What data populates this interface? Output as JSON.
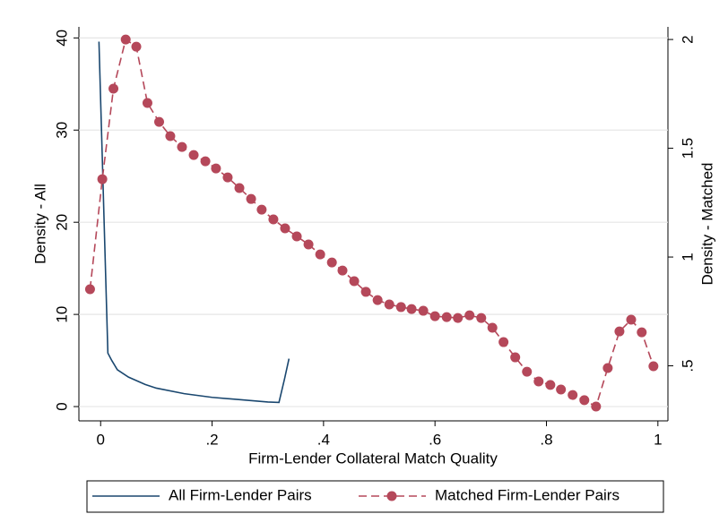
{
  "chart_data": {
    "type": "line",
    "xlabel": "Firm-Lender Collateral Match Quality",
    "ylabel": "Density - All",
    "y2label": "Density - Matched",
    "xlim": [
      -0.039,
      1.018
    ],
    "ylim": [
      -1.55,
      41.2
    ],
    "y2lim": [
      0.247,
      2.058
    ],
    "xticks": [
      0,
      {
        "value": 0.2,
        "label": ".2"
      },
      {
        "value": 0.4,
        "label": ".4"
      },
      {
        "value": 0.6,
        "label": ".6"
      },
      {
        "value": 0.8,
        "label": ".8"
      },
      1
    ],
    "yticks": [
      0,
      10,
      20,
      30,
      40
    ],
    "y2ticks": [
      {
        "value": 0.5,
        "label": ".5"
      },
      1,
      1.5,
      2
    ],
    "grid": true,
    "legend": "bottom",
    "series": [
      {
        "name": "All Firm-Lender Pairs",
        "color": "#1a476f",
        "dashed": false,
        "markers": false,
        "x": [
          -0.003,
          0.013,
          0.02,
          0.03,
          0.05,
          0.08,
          0.1,
          0.15,
          0.2,
          0.25,
          0.3,
          0.32,
          0.33,
          0.338
        ],
        "values": [
          39.6,
          5.8,
          5.0,
          4.0,
          3.2,
          2.4,
          2.0,
          1.4,
          1.0,
          0.75,
          0.5,
          0.45,
          3.0,
          5.2
        ]
      },
      {
        "name": "Matched Firm-Lender Pairs",
        "color": "#b5485a",
        "dashed": true,
        "markers": true,
        "axis": "y2",
        "x": [
          -0.019,
          0.003,
          0.023,
          0.045,
          0.064,
          0.084,
          0.105,
          0.125,
          0.146,
          0.167,
          0.188,
          0.207,
          0.228,
          0.249,
          0.27,
          0.289,
          0.31,
          0.331,
          0.352,
          0.373,
          0.394,
          0.415,
          0.434,
          0.455,
          0.476,
          0.497,
          0.518,
          0.539,
          0.558,
          0.579,
          0.6,
          0.621,
          0.641,
          0.662,
          0.683,
          0.703,
          0.723,
          0.744,
          0.765,
          0.786,
          0.807,
          0.826,
          0.847,
          0.868,
          0.889,
          0.91,
          0.931,
          0.952,
          0.971,
          0.992
        ],
        "values": [
          0.852,
          1.358,
          1.774,
          2.0,
          1.967,
          1.708,
          1.621,
          1.556,
          1.506,
          1.469,
          1.44,
          1.407,
          1.366,
          1.317,
          1.267,
          1.218,
          1.173,
          1.132,
          1.095,
          1.058,
          1.012,
          0.975,
          0.938,
          0.889,
          0.84,
          0.802,
          0.782,
          0.77,
          0.761,
          0.753,
          0.728,
          0.724,
          0.72,
          0.732,
          0.72,
          0.675,
          0.609,
          0.539,
          0.473,
          0.428,
          0.412,
          0.391,
          0.366,
          0.342,
          0.313,
          0.49,
          0.658,
          0.712,
          0.654,
          0.498
        ]
      }
    ]
  }
}
